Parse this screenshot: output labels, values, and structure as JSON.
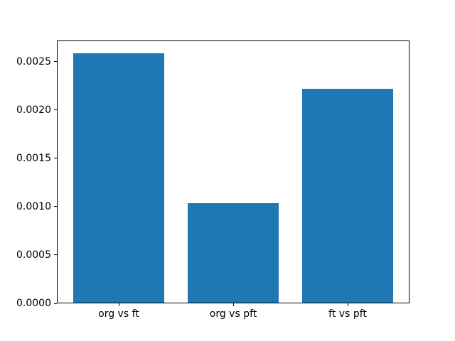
{
  "figure": {
    "background": "#ffffff"
  },
  "chart_data": {
    "type": "bar",
    "title": "",
    "xlabel": "",
    "ylabel": "",
    "categories": [
      "org vs ft",
      "org vs pft",
      "ft vs pft"
    ],
    "values": [
      0.00259,
      0.00104,
      0.00222
    ],
    "bar_positions": [
      0,
      1,
      2
    ],
    "bar_width": 0.8,
    "bar_color": "#1f77b4",
    "xlim": [
      -0.54,
      2.54
    ],
    "ylim": [
      0,
      0.00272
    ],
    "yticks": [
      {
        "value": 0.0,
        "label": "0.0000"
      },
      {
        "value": 0.0005,
        "label": "0.0005"
      },
      {
        "value": 0.001,
        "label": "0.0010"
      },
      {
        "value": 0.0015,
        "label": "0.0015"
      },
      {
        "value": 0.002,
        "label": "0.0020"
      },
      {
        "value": 0.0025,
        "label": "0.0025"
      }
    ],
    "grid": false,
    "legend": null,
    "axis_color": "#000000",
    "text_color": "#000000"
  }
}
